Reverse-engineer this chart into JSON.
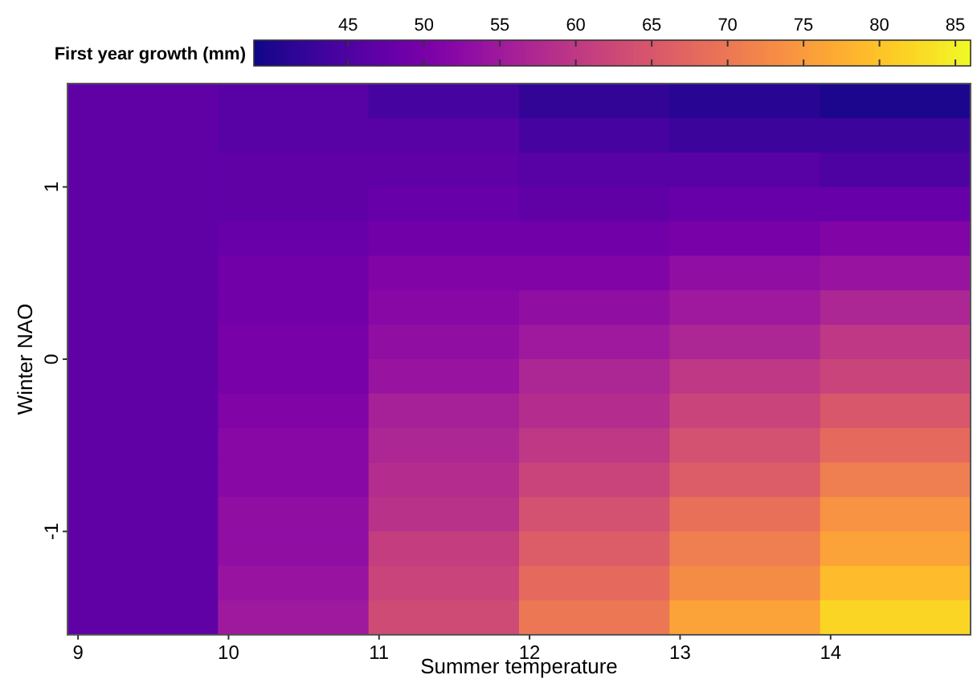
{
  "chart_data": {
    "type": "heatmap",
    "xlabel": "Summer temperature",
    "ylabel": "Winter NAO",
    "clabel": "First year growth (mm)",
    "xlim": [
      8.93,
      14.93
    ],
    "xticks": [
      9,
      10,
      11,
      12,
      13,
      14
    ],
    "ylim": [
      -1.6,
      1.6
    ],
    "yticks": [
      -1,
      0,
      1
    ],
    "clim": [
      38.8,
      86
    ],
    "cticks": [
      45,
      50,
      55,
      60,
      65,
      70,
      75,
      80,
      85
    ],
    "cells": [
      [
        47,
        46,
        44,
        42,
        41,
        40
      ],
      [
        47,
        46,
        46,
        44,
        43,
        43
      ],
      [
        47,
        47,
        47,
        46,
        46,
        45
      ],
      [
        47,
        47,
        48,
        47,
        48,
        48
      ],
      [
        47,
        48,
        49,
        49,
        50,
        51
      ],
      [
        47,
        49,
        51,
        51,
        53,
        54
      ],
      [
        47,
        49,
        52,
        53,
        55,
        57
      ],
      [
        47,
        50,
        53,
        55,
        57,
        60
      ],
      [
        47,
        50,
        54,
        57,
        60,
        62
      ],
      [
        47,
        51,
        56,
        58,
        62,
        65
      ],
      [
        47,
        52,
        57,
        60,
        64,
        68
      ],
      [
        47,
        52,
        58,
        62,
        66,
        71
      ],
      [
        47,
        53,
        59,
        64,
        69,
        74
      ],
      [
        47,
        53,
        61,
        66,
        71,
        76
      ],
      [
        47,
        54,
        62,
        68,
        73,
        79
      ],
      [
        47,
        55,
        63,
        70,
        76,
        82
      ]
    ]
  }
}
